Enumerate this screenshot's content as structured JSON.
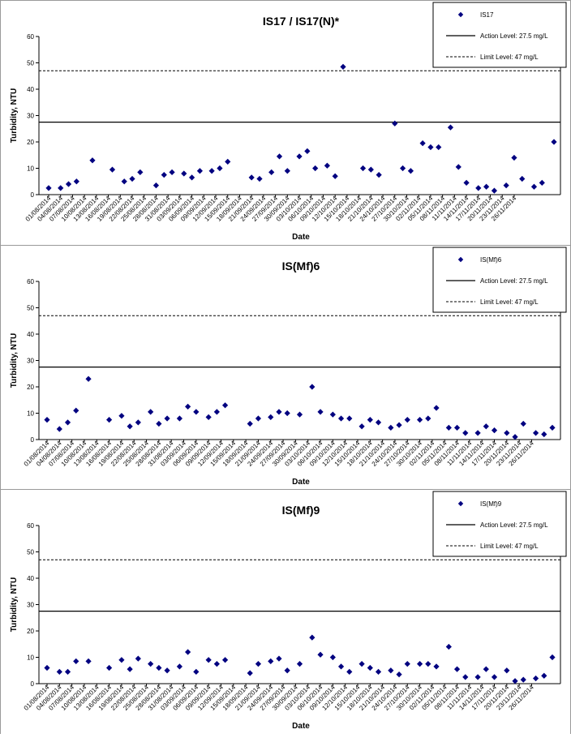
{
  "dates": [
    "01/08/2014",
    "04/08/2014",
    "07/08/2014",
    "10/08/2014",
    "13/08/2014",
    "16/08/2014",
    "19/08/2014",
    "22/08/2014",
    "25/08/2014",
    "28/08/2014",
    "31/08/2014",
    "03/09/2014",
    "06/09/2014",
    "09/09/2014",
    "12/09/2014",
    "15/09/2014",
    "18/09/2014",
    "21/09/2014",
    "24/09/2014",
    "27/09/2014",
    "30/09/2014",
    "03/10/2014",
    "06/10/2014",
    "09/10/2014",
    "12/10/2014",
    "15/10/2014",
    "18/10/2014",
    "21/10/2014",
    "24/10/2014",
    "27/10/2014",
    "30/10/2014",
    "02/11/2014",
    "05/11/2014",
    "08/11/2014",
    "11/11/2014",
    "14/11/2014",
    "17/11/2014",
    "20/11/2014",
    "23/11/2014",
    "26/11/2014"
  ],
  "chart_data": [
    {
      "type": "scatter",
      "title": "IS17 / IS17(N)*",
      "xlabel": "Date",
      "ylabel": "Turbidity, NTU",
      "ylim": [
        0,
        60
      ],
      "yticks": [
        0,
        10,
        20,
        30,
        40,
        50,
        60
      ],
      "grid": false,
      "legend_position": "top-right",
      "series": [
        {
          "name": "IS17",
          "marker": "diamond",
          "color": "#000080",
          "points": [
            [
              0,
              2.5
            ],
            [
              3,
              2.5
            ],
            [
              5,
              4
            ],
            [
              7,
              5
            ],
            [
              11,
              13
            ],
            [
              16,
              9.5
            ],
            [
              19,
              5
            ],
            [
              21,
              6
            ],
            [
              23,
              8.5
            ],
            [
              27,
              3.5
            ],
            [
              29,
              7.5
            ],
            [
              31,
              8.5
            ],
            [
              34,
              8
            ],
            [
              36,
              6.5
            ],
            [
              38,
              9
            ],
            [
              41,
              9
            ],
            [
              43,
              10
            ],
            [
              45,
              12.5
            ],
            [
              51,
              6.5
            ],
            [
              53,
              6
            ],
            [
              56,
              8.5
            ],
            [
              58,
              14.5
            ],
            [
              60,
              9
            ],
            [
              63,
              14.5
            ],
            [
              65,
              16.5
            ],
            [
              67,
              10
            ],
            [
              70,
              11
            ],
            [
              72,
              7
            ],
            [
              74,
              48.5
            ],
            [
              79,
              10
            ],
            [
              81,
              9.5
            ],
            [
              83,
              7.5
            ],
            [
              87,
              27
            ],
            [
              89,
              10
            ],
            [
              91,
              9
            ],
            [
              94,
              19.5
            ],
            [
              96,
              18
            ],
            [
              98,
              18
            ],
            [
              101,
              25.5
            ],
            [
              103,
              10.5
            ],
            [
              105,
              4.5
            ],
            [
              108,
              2.5
            ],
            [
              110,
              3
            ],
            [
              112,
              1.5
            ],
            [
              115,
              3.5
            ],
            [
              117,
              14
            ],
            [
              119,
              6
            ],
            [
              122,
              3
            ],
            [
              124,
              4.5
            ],
            [
              127,
              20
            ]
          ]
        },
        {
          "name": "Action Level: 27.5 mg/L",
          "style": "solid",
          "value": 27.5
        },
        {
          "name": "Limit Level: 47 mg/L",
          "style": "dashed",
          "value": 47
        }
      ]
    },
    {
      "type": "scatter",
      "title": "IS(Mf)6",
      "xlabel": "Date",
      "ylabel": "Turbidity, NTU",
      "ylim": [
        0,
        60
      ],
      "yticks": [
        0,
        10,
        20,
        30,
        40,
        50,
        60
      ],
      "grid": false,
      "legend_position": "top-right",
      "series": [
        {
          "name": "IS(Mf)6",
          "marker": "diamond",
          "color": "#000080",
          "points": [
            [
              0,
              7.5
            ],
            [
              3,
              4
            ],
            [
              5,
              6.5
            ],
            [
              7,
              11
            ],
            [
              10,
              23
            ],
            [
              15,
              7.5
            ],
            [
              18,
              9
            ],
            [
              20,
              5
            ],
            [
              22,
              6.5
            ],
            [
              25,
              10.5
            ],
            [
              27,
              6
            ],
            [
              29,
              8
            ],
            [
              32,
              8
            ],
            [
              34,
              12.5
            ],
            [
              36,
              10.5
            ],
            [
              39,
              8.5
            ],
            [
              41,
              10.5
            ],
            [
              43,
              13
            ],
            [
              49,
              6
            ],
            [
              51,
              8
            ],
            [
              54,
              8.5
            ],
            [
              56,
              10.5
            ],
            [
              58,
              10
            ],
            [
              61,
              9.5
            ],
            [
              64,
              20
            ],
            [
              66,
              10.5
            ],
            [
              69,
              9.5
            ],
            [
              71,
              8
            ],
            [
              73,
              8
            ],
            [
              76,
              5
            ],
            [
              78,
              7.5
            ],
            [
              80,
              6.5
            ],
            [
              83,
              4.5
            ],
            [
              85,
              5.5
            ],
            [
              87,
              7.5
            ],
            [
              90,
              7.5
            ],
            [
              92,
              8
            ],
            [
              94,
              12
            ],
            [
              97,
              4.5
            ],
            [
              99,
              4.5
            ],
            [
              101,
              2.5
            ],
            [
              104,
              2.5
            ],
            [
              106,
              5
            ],
            [
              108,
              3.5
            ],
            [
              111,
              2.5
            ],
            [
              113,
              1
            ],
            [
              115,
              6
            ],
            [
              118,
              2.5
            ],
            [
              120,
              2
            ],
            [
              122,
              4.5
            ]
          ]
        },
        {
          "name": "Action Level: 27.5 mg/L",
          "style": "solid",
          "value": 27.5
        },
        {
          "name": "Limit Level: 47 mg/L",
          "style": "dashed",
          "value": 47
        }
      ]
    },
    {
      "type": "scatter",
      "title": "IS(Mf)9",
      "xlabel": "Date",
      "ylabel": "Turbidity, NTU",
      "ylim": [
        0,
        60
      ],
      "yticks": [
        0,
        10,
        20,
        30,
        40,
        50,
        60
      ],
      "grid": false,
      "legend_position": "top-right",
      "series": [
        {
          "name": "IS(Mf)9",
          "marker": "diamond",
          "color": "#000080",
          "points": [
            [
              0,
              6
            ],
            [
              3,
              4.5
            ],
            [
              5,
              4.5
            ],
            [
              7,
              8.5
            ],
            [
              10,
              8.5
            ],
            [
              15,
              6
            ],
            [
              18,
              9
            ],
            [
              20,
              5.5
            ],
            [
              22,
              9.5
            ],
            [
              25,
              7.5
            ],
            [
              27,
              6
            ],
            [
              29,
              5
            ],
            [
              32,
              6.5
            ],
            [
              34,
              12
            ],
            [
              36,
              4.5
            ],
            [
              39,
              9
            ],
            [
              41,
              7.5
            ],
            [
              43,
              9
            ],
            [
              49,
              4
            ],
            [
              51,
              7.5
            ],
            [
              54,
              8.5
            ],
            [
              56,
              9.5
            ],
            [
              58,
              5
            ],
            [
              61,
              7.5
            ],
            [
              64,
              17.5
            ],
            [
              66,
              11
            ],
            [
              69,
              10
            ],
            [
              71,
              6.5
            ],
            [
              73,
              4.5
            ],
            [
              76,
              7.5
            ],
            [
              78,
              6
            ],
            [
              80,
              4.5
            ],
            [
              83,
              5
            ],
            [
              85,
              3.5
            ],
            [
              87,
              7.5
            ],
            [
              90,
              7.5
            ],
            [
              92,
              7.5
            ],
            [
              94,
              6.5
            ],
            [
              97,
              14
            ],
            [
              99,
              5.5
            ],
            [
              101,
              2.5
            ],
            [
              104,
              2.5
            ],
            [
              106,
              5.5
            ],
            [
              108,
              2.5
            ],
            [
              111,
              5
            ],
            [
              113,
              1
            ],
            [
              115,
              1.5
            ],
            [
              118,
              2
            ],
            [
              120,
              3
            ],
            [
              122,
              10
            ]
          ]
        },
        {
          "name": "Action Level: 27.5 mg/L",
          "style": "solid",
          "value": 27.5
        },
        {
          "name": "Limit Level: 47 mg/L",
          "style": "dashed",
          "value": 47
        }
      ]
    }
  ]
}
